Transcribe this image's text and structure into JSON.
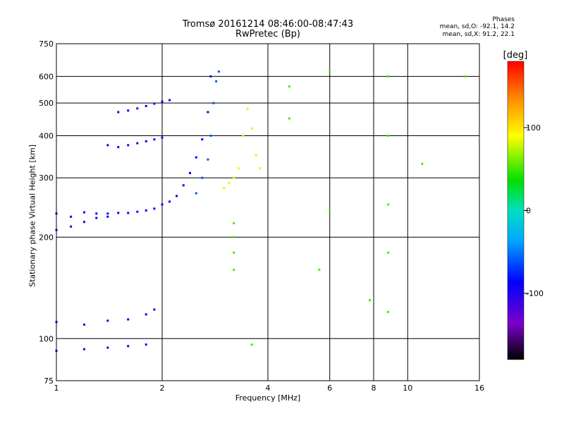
{
  "chart_data": {
    "type": "scatter",
    "title": "Tromsø 20161214 08:46:00-08:47:43",
    "subtitle": "RwPretec (Bp)",
    "xlabel": "Frequency [MHz]",
    "ylabel": "Stationary phase Virtual Height [km]",
    "xscale": "log",
    "yscale": "log",
    "xlim": [
      1,
      16
    ],
    "ylim": [
      75,
      750
    ],
    "xticks": [
      1,
      2,
      4,
      6,
      8,
      10,
      16
    ],
    "yticks": [
      75,
      100,
      200,
      300,
      400,
      500,
      600,
      750
    ],
    "grid": true,
    "colorbar": {
      "label": "[deg]",
      "min": -180,
      "max": 180,
      "ticks": [
        -100,
        0,
        100
      ]
    },
    "stats": {
      "header": "Phases",
      "O": "mean, sd,O: -92.1, 14.2",
      "X": "mean, sd,X: 91.2, 22.1"
    },
    "series": [
      {
        "values": [
          [
            1.0,
            235
          ],
          [
            1.1,
            230
          ],
          [
            1.2,
            237
          ],
          [
            1.3,
            235
          ],
          [
            1.4,
            235
          ],
          [
            1.5,
            236
          ],
          [
            1.6,
            236
          ],
          [
            1.7,
            238
          ],
          [
            1.8,
            240
          ],
          [
            1.9,
            243
          ],
          [
            2.0,
            250
          ],
          [
            2.1,
            255
          ],
          [
            2.2,
            265
          ],
          [
            2.3,
            285
          ],
          [
            2.4,
            310
          ],
          [
            2.5,
            345
          ],
          [
            2.6,
            390
          ],
          [
            2.7,
            470
          ],
          [
            2.75,
            600
          ]
        ],
        "phase": -100
      },
      {
        "values": [
          [
            1.0,
            210
          ],
          [
            1.1,
            215
          ],
          [
            1.2,
            222
          ],
          [
            1.3,
            228
          ],
          [
            1.4,
            230
          ]
        ],
        "phase": -105
      },
      {
        "values": [
          [
            1.4,
            375
          ],
          [
            1.5,
            370
          ],
          [
            1.6,
            375
          ],
          [
            1.7,
            380
          ],
          [
            1.8,
            385
          ],
          [
            1.9,
            390
          ],
          [
            2.0,
            395
          ]
        ],
        "phase": -100
      },
      {
        "values": [
          [
            1.5,
            470
          ],
          [
            1.6,
            475
          ],
          [
            1.7,
            482
          ],
          [
            1.8,
            490
          ],
          [
            1.9,
            498
          ],
          [
            2.0,
            505
          ],
          [
            2.1,
            510
          ]
        ],
        "phase": -100
      },
      {
        "values": [
          [
            2.5,
            270
          ],
          [
            2.6,
            300
          ],
          [
            2.7,
            340
          ],
          [
            2.75,
            400
          ],
          [
            2.8,
            500
          ],
          [
            2.85,
            580
          ],
          [
            2.9,
            620
          ]
        ],
        "phase": -70
      },
      {
        "values": [
          [
            1.0,
            112
          ],
          [
            1.2,
            110
          ],
          [
            1.4,
            113
          ],
          [
            1.6,
            114
          ],
          [
            1.8,
            118
          ],
          [
            1.9,
            122
          ]
        ],
        "phase": -100
      },
      {
        "values": [
          [
            1.0,
            92
          ],
          [
            1.2,
            93
          ],
          [
            1.4,
            94
          ],
          [
            1.6,
            95
          ],
          [
            1.8,
            96
          ]
        ],
        "phase": -100
      },
      {
        "values": [
          [
            3.0,
            280
          ],
          [
            3.1,
            290
          ],
          [
            3.2,
            300
          ],
          [
            3.3,
            320
          ],
          [
            3.4,
            400
          ],
          [
            3.5,
            480
          ],
          [
            3.6,
            420
          ],
          [
            3.7,
            350
          ],
          [
            3.8,
            320
          ]
        ],
        "phase": 90
      },
      {
        "values": [
          [
            3.2,
            160
          ],
          [
            3.2,
            180
          ],
          [
            3.2,
            200
          ],
          [
            3.2,
            220
          ],
          [
            3.6,
            96
          ],
          [
            8.8,
            120
          ],
          [
            8.8,
            180
          ],
          [
            8.8,
            250
          ],
          [
            8.8,
            400
          ],
          [
            8.8,
            600
          ],
          [
            6.0,
            240
          ],
          [
            6.0,
            620
          ],
          [
            5.6,
            160
          ],
          [
            4.6,
            560
          ],
          [
            4.6,
            450
          ],
          [
            7.8,
            130
          ],
          [
            11.0,
            330
          ],
          [
            14.5,
            600
          ]
        ],
        "phase": 50
      }
    ]
  }
}
